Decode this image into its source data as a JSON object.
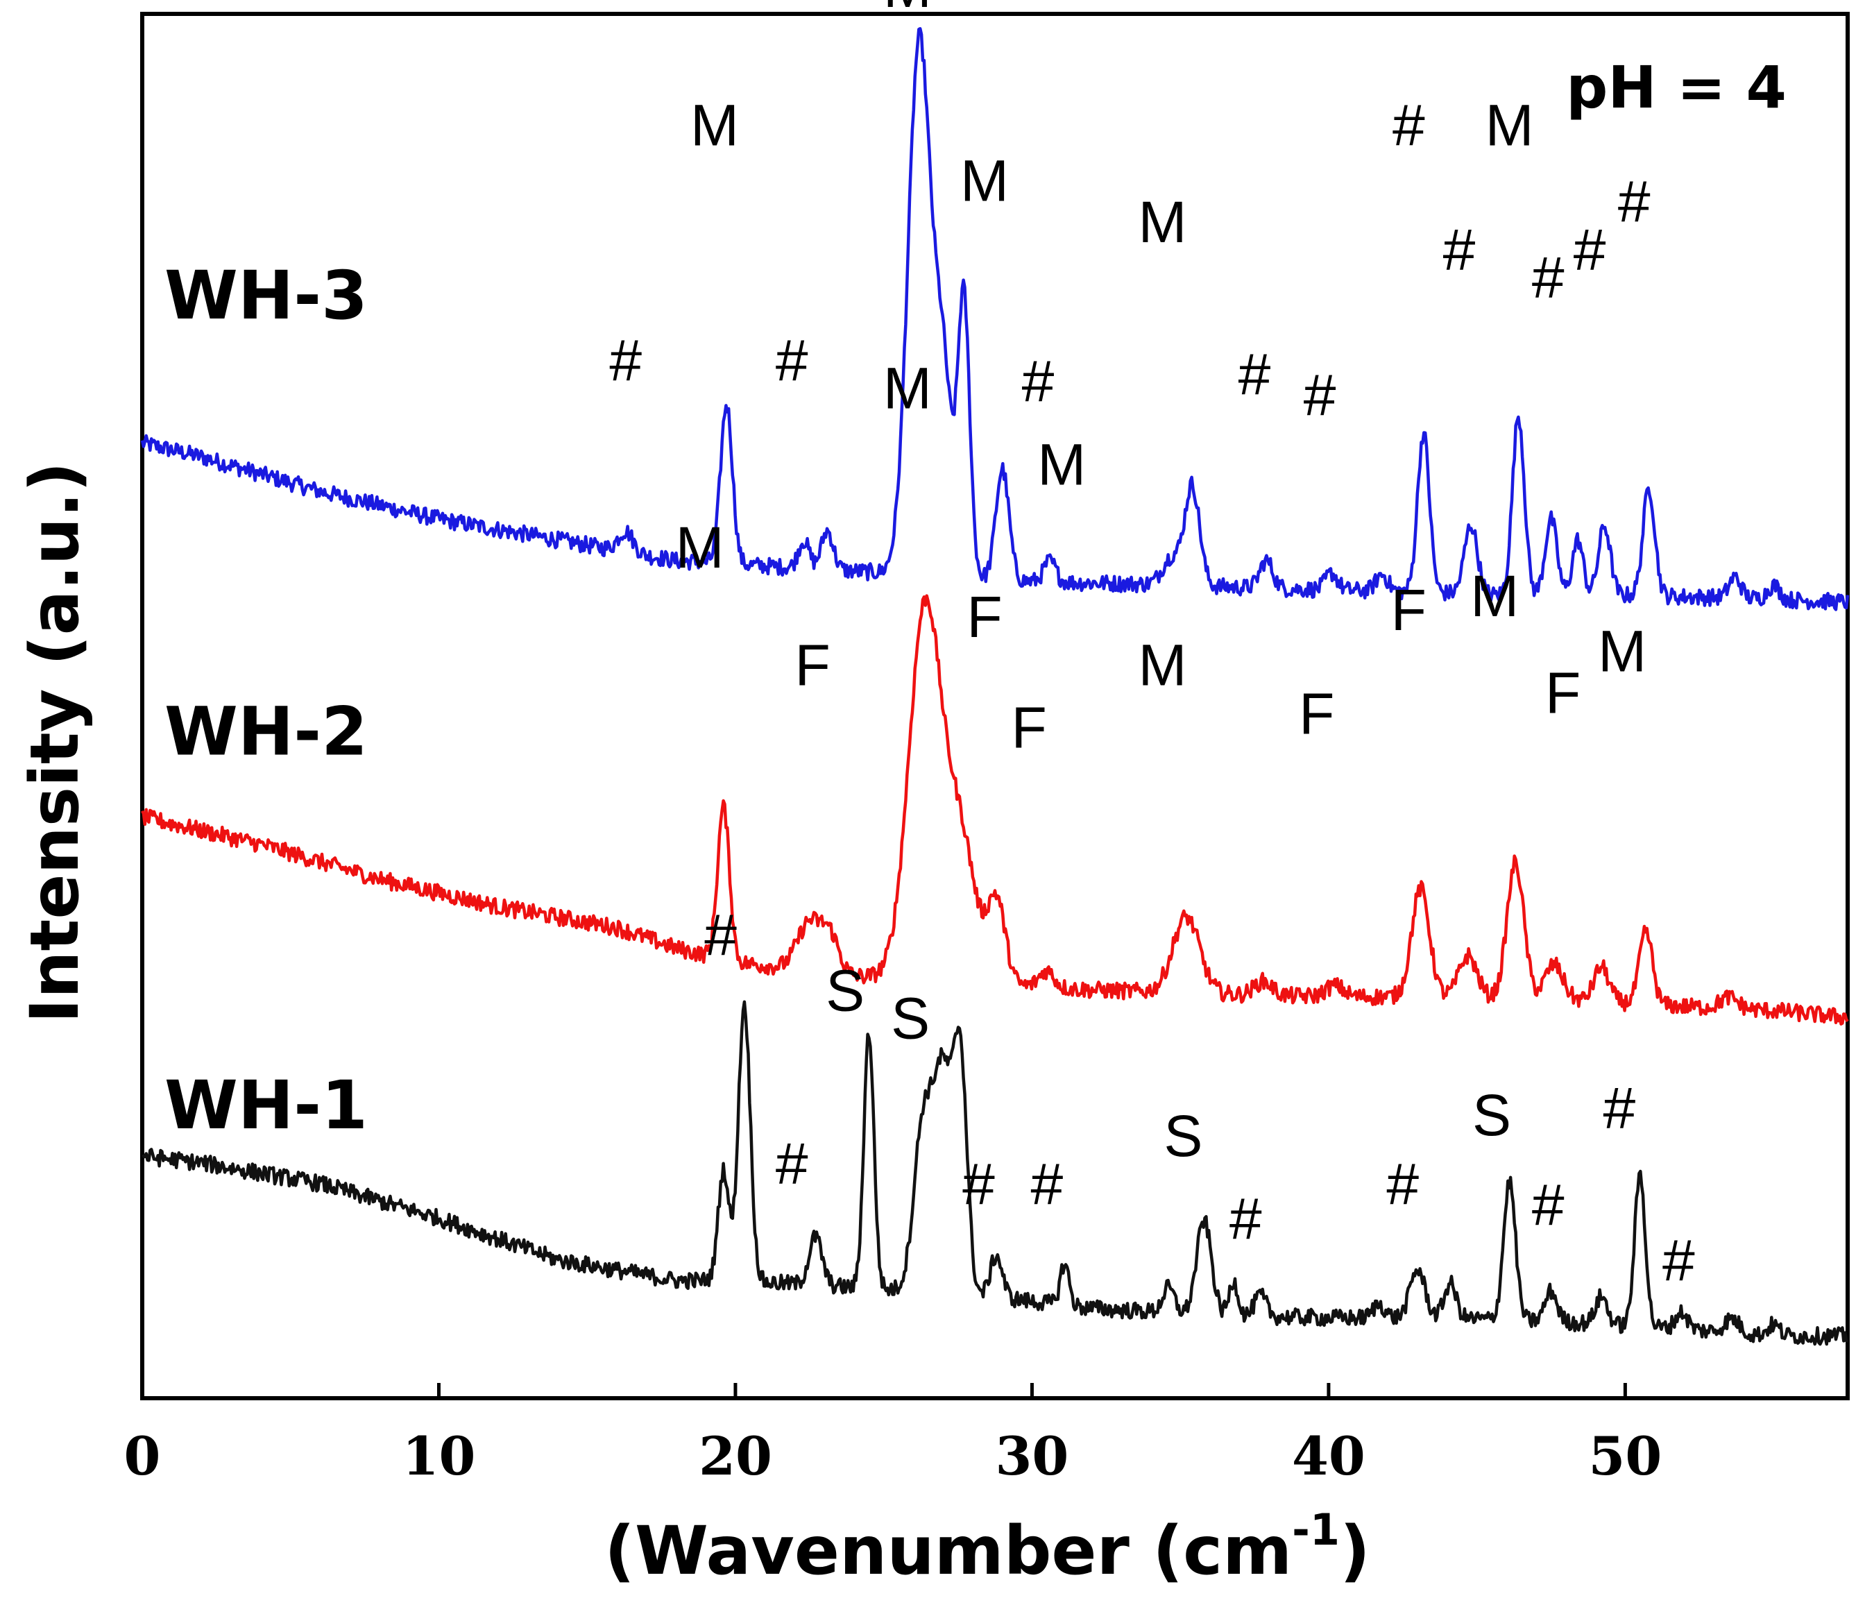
{
  "chart_data": {
    "type": "line",
    "title": "",
    "annotation": "pH = 4",
    "xlabel": "(Wavenumber (cm",
    "xlabel_sup": "-1",
    "xlabel_end": ")",
    "ylabel": "Intensity (a.u.)",
    "xlim": [
      0,
      57.5
    ],
    "ylim": [
      0,
      100
    ],
    "xticks": [
      0,
      10,
      20,
      30,
      40,
      50
    ],
    "xtick_labels": [
      "0",
      "10",
      "20",
      "30",
      "40",
      "50"
    ],
    "grid": false,
    "colors": {
      "WH-3": "#1a1ae0",
      "WH-2": "#ee1111",
      "WH-1": "#111111"
    },
    "series": [
      {
        "name": "WH-3",
        "label": "WH-3",
        "color": "#1a1ae0",
        "baseline": [
          [
            0,
            69.0
          ],
          [
            2,
            68.0
          ],
          [
            6,
            65.5
          ],
          [
            10,
            63.5
          ],
          [
            14,
            62.0
          ],
          [
            18,
            60.5
          ],
          [
            22,
            60.0
          ],
          [
            26,
            59.5
          ],
          [
            30,
            59.0
          ],
          [
            34,
            58.8
          ],
          [
            38,
            58.5
          ],
          [
            42,
            58.3
          ],
          [
            46,
            58.0
          ],
          [
            50,
            58.0
          ],
          [
            54,
            57.8
          ],
          [
            57.5,
            57.5
          ]
        ],
        "peaks": [
          [
            16.3,
            1.5,
            0.25
          ],
          [
            19.7,
            11.5,
            0.2
          ],
          [
            22.3,
            2.0,
            0.18
          ],
          [
            23.1,
            2.8,
            0.2
          ],
          [
            26.2,
            38.5,
            0.38
          ],
          [
            27.0,
            14.0,
            0.3
          ],
          [
            27.7,
            20.0,
            0.2
          ],
          [
            29.0,
            8.0,
            0.22
          ],
          [
            30.6,
            1.5,
            0.2
          ],
          [
            35.4,
            7.2,
            0.25
          ],
          [
            34.7,
            2.0,
            0.3
          ],
          [
            37.9,
            2.0,
            0.22
          ],
          [
            40.1,
            1.2,
            0.2
          ],
          [
            41.8,
            1.2,
            0.2
          ],
          [
            43.2,
            11.5,
            0.2
          ],
          [
            44.8,
            5.0,
            0.22
          ],
          [
            46.4,
            13.0,
            0.2
          ],
          [
            47.5,
            5.5,
            0.2
          ],
          [
            48.4,
            4.0,
            0.18
          ],
          [
            49.3,
            5.0,
            0.2
          ],
          [
            50.8,
            7.8,
            0.2
          ],
          [
            53.7,
            1.5,
            0.2
          ],
          [
            55.0,
            1.0,
            0.2
          ]
        ],
        "noise": 0.6,
        "labels": [
          {
            "text": "#",
            "x": 16.3,
            "y": 73.5
          },
          {
            "text": "M",
            "x": 19.3,
            "y": 90.5
          },
          {
            "text": "#",
            "x": 21.9,
            "y": 73.5
          },
          {
            "text": "M",
            "x": 25.8,
            "y": 100.5
          },
          {
            "text": "M",
            "x": 28.4,
            "y": 86.5
          },
          {
            "text": "#",
            "x": 30.2,
            "y": 72.0
          },
          {
            "text": "M",
            "x": 34.4,
            "y": 83.5
          },
          {
            "text": "#",
            "x": 37.5,
            "y": 72.5
          },
          {
            "text": "#",
            "x": 39.7,
            "y": 71.0
          },
          {
            "text": "#",
            "x": 42.7,
            "y": 90.5
          },
          {
            "text": "M",
            "x": 46.1,
            "y": 90.5
          },
          {
            "text": "#",
            "x": 44.4,
            "y": 81.5
          },
          {
            "text": "#",
            "x": 47.4,
            "y": 79.5
          },
          {
            "text": "#",
            "x": 48.8,
            "y": 81.5
          },
          {
            "text": "#",
            "x": 50.3,
            "y": 85.0
          }
        ]
      },
      {
        "name": "WH-2",
        "label": "WH-2",
        "color": "#ee1111",
        "baseline": [
          [
            0,
            42.0
          ],
          [
            4,
            40.0
          ],
          [
            8,
            37.5
          ],
          [
            12,
            35.5
          ],
          [
            16,
            34.0
          ],
          [
            18,
            32.5
          ],
          [
            20,
            31.5
          ],
          [
            24,
            30.5
          ],
          [
            28,
            30.0
          ],
          [
            32,
            29.5
          ],
          [
            36,
            29.2
          ],
          [
            40,
            29.0
          ],
          [
            44,
            29.0
          ],
          [
            48,
            28.8
          ],
          [
            52,
            28.3
          ],
          [
            55,
            28.0
          ],
          [
            57.5,
            27.5
          ]
        ],
        "peaks": [
          [
            19.6,
            11.0,
            0.2
          ],
          [
            22.5,
            3.5,
            0.4
          ],
          [
            23.2,
            2.5,
            0.3
          ],
          [
            26.4,
            27.0,
            0.55
          ],
          [
            27.6,
            10.0,
            0.5
          ],
          [
            28.8,
            6.0,
            0.3
          ],
          [
            30.5,
            1.2,
            0.25
          ],
          [
            35.2,
            5.5,
            0.45
          ],
          [
            37.8,
            1.0,
            0.3
          ],
          [
            40.2,
            0.8,
            0.3
          ],
          [
            43.1,
            7.8,
            0.3
          ],
          [
            44.7,
            3.0,
            0.3
          ],
          [
            46.3,
            9.8,
            0.28
          ],
          [
            47.6,
            2.5,
            0.3
          ],
          [
            49.2,
            2.5,
            0.25
          ],
          [
            50.7,
            5.2,
            0.22
          ],
          [
            53.5,
            0.8,
            0.3
          ]
        ],
        "noise": 0.6,
        "labels": [
          {
            "text": "M",
            "x": 18.8,
            "y": 60.0
          },
          {
            "text": "F",
            "x": 22.6,
            "y": 51.5
          },
          {
            "text": "M",
            "x": 25.8,
            "y": 71.5
          },
          {
            "text": "M",
            "x": 31.0,
            "y": 66.0
          },
          {
            "text": "F",
            "x": 28.4,
            "y": 55.0
          },
          {
            "text": "F",
            "x": 29.9,
            "y": 47.0
          },
          {
            "text": "M",
            "x": 34.4,
            "y": 51.5
          },
          {
            "text": "F",
            "x": 39.6,
            "y": 48.0
          },
          {
            "text": "F",
            "x": 42.7,
            "y": 55.5
          },
          {
            "text": "M",
            "x": 45.6,
            "y": 56.5
          },
          {
            "text": "F",
            "x": 47.9,
            "y": 49.5
          },
          {
            "text": "M",
            "x": 49.9,
            "y": 52.5
          }
        ]
      },
      {
        "name": "WH-1",
        "label": "WH-1",
        "color": "#111111",
        "baseline": [
          [
            0,
            17.5
          ],
          [
            2,
            17.0
          ],
          [
            6,
            15.5
          ],
          [
            10,
            13.0
          ],
          [
            14,
            10.0
          ],
          [
            18,
            8.5
          ],
          [
            20,
            8.5
          ],
          [
            24,
            8.0
          ],
          [
            28,
            7.5
          ],
          [
            32,
            6.5
          ],
          [
            36,
            6.0
          ],
          [
            40,
            5.8
          ],
          [
            44,
            5.8
          ],
          [
            48,
            5.5
          ],
          [
            52,
            5.0
          ],
          [
            55,
            4.5
          ],
          [
            57.5,
            4.5
          ]
        ],
        "peaks": [
          [
            19.6,
            8.0,
            0.18
          ],
          [
            20.3,
            20.0,
            0.2
          ],
          [
            22.7,
            3.5,
            0.22
          ],
          [
            24.5,
            18.5,
            0.17
          ],
          [
            26.3,
            11.0,
            0.3
          ],
          [
            27.0,
            16.0,
            0.35
          ],
          [
            27.6,
            15.0,
            0.22
          ],
          [
            28.8,
            3.0,
            0.2
          ],
          [
            31.1,
            3.0,
            0.15
          ],
          [
            34.6,
            1.8,
            0.2
          ],
          [
            35.8,
            6.8,
            0.25
          ],
          [
            36.8,
            2.5,
            0.15
          ],
          [
            37.7,
            1.5,
            0.2
          ],
          [
            41.7,
            1.0,
            0.2
          ],
          [
            43.0,
            3.5,
            0.25
          ],
          [
            44.1,
            2.5,
            0.2
          ],
          [
            46.1,
            10.0,
            0.2
          ],
          [
            47.5,
            2.2,
            0.2
          ],
          [
            49.2,
            2.0,
            0.2
          ],
          [
            50.5,
            11.0,
            0.18
          ],
          [
            51.9,
            1.2,
            0.2
          ],
          [
            53.6,
            1.0,
            0.25
          ],
          [
            55.0,
            0.8,
            0.2
          ]
        ],
        "noise": 0.6,
        "labels": [
          {
            "text": "#",
            "x": 19.5,
            "y": 32.0
          },
          {
            "text": "#",
            "x": 21.9,
            "y": 15.5
          },
          {
            "text": "S",
            "x": 23.7,
            "y": 28.0
          },
          {
            "text": "S",
            "x": 25.9,
            "y": 26.0
          },
          {
            "text": "#",
            "x": 28.2,
            "y": 14.0
          },
          {
            "text": "#",
            "x": 30.5,
            "y": 14.0
          },
          {
            "text": "S",
            "x": 35.1,
            "y": 17.5
          },
          {
            "text": "#",
            "x": 37.2,
            "y": 11.5
          },
          {
            "text": "#",
            "x": 42.5,
            "y": 14.0
          },
          {
            "text": "S",
            "x": 45.5,
            "y": 19.0
          },
          {
            "text": "#",
            "x": 47.4,
            "y": 12.5
          },
          {
            "text": "#",
            "x": 49.8,
            "y": 19.5
          },
          {
            "text": "#",
            "x": 51.8,
            "y": 8.5
          }
        ]
      }
    ],
    "series_labels": [
      {
        "text": "WH-3",
        "y": 78.0
      },
      {
        "text": "WH-2",
        "y": 46.5
      },
      {
        "text": "WH-1",
        "y": 19.5
      }
    ]
  }
}
